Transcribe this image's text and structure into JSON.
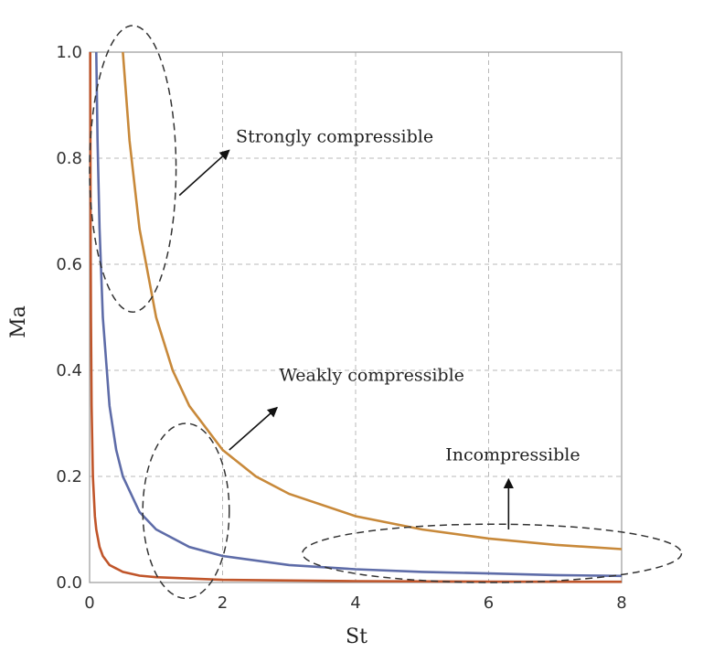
{
  "chart_data": {
    "type": "line",
    "xlabel": "St",
    "ylabel": "Ma",
    "xlim": [
      0,
      8
    ],
    "ylim": [
      0,
      1
    ],
    "xticks": [
      "0",
      "2",
      "4",
      "6",
      "8"
    ],
    "yticks": [
      "0.0",
      "0.2",
      "0.4",
      "0.6",
      "0.8",
      "1.0"
    ],
    "grid": true,
    "series": [
      {
        "color": "#c8893a",
        "x": [
          0.5,
          0.6,
          0.75,
          1,
          1.25,
          1.5,
          2,
          2.5,
          3,
          4,
          5,
          6,
          7,
          8
        ],
        "y": [
          1.0,
          0.833,
          0.667,
          0.5,
          0.4,
          0.333,
          0.25,
          0.2,
          0.167,
          0.125,
          0.1,
          0.083,
          0.071,
          0.063
        ]
      },
      {
        "color": "#5e6ca8",
        "x": [
          0.1,
          0.12,
          0.15,
          0.2,
          0.3,
          0.4,
          0.5,
          0.75,
          1,
          1.5,
          2,
          3,
          4,
          5,
          6,
          7,
          8
        ],
        "y": [
          1.0,
          0.833,
          0.667,
          0.5,
          0.333,
          0.25,
          0.2,
          0.133,
          0.1,
          0.067,
          0.05,
          0.033,
          0.025,
          0.02,
          0.017,
          0.014,
          0.0125
        ]
      },
      {
        "color": "#c0552a",
        "x": [
          0.01,
          0.012,
          0.015,
          0.02,
          0.03,
          0.05,
          0.08,
          0.1,
          0.15,
          0.2,
          0.3,
          0.5,
          0.75,
          1,
          2,
          4,
          6,
          8
        ],
        "y": [
          1.0,
          0.833,
          0.667,
          0.5,
          0.333,
          0.2,
          0.125,
          0.1,
          0.067,
          0.05,
          0.033,
          0.02,
          0.013,
          0.01,
          0.005,
          0.0025,
          0.0017,
          0.0013
        ]
      }
    ],
    "annotations": [
      {
        "text": "Strongly compressible",
        "x": 2.2,
        "y": 0.83
      },
      {
        "text": "Weakly compressible",
        "x": 2.85,
        "y": 0.38
      },
      {
        "text": "Incompressible",
        "x": 5.35,
        "y": 0.23
      }
    ],
    "regions": [
      {
        "name": "strongly",
        "cx": 0.65,
        "cy": 0.78,
        "rx": 0.65,
        "ry": 0.27
      },
      {
        "name": "weakly",
        "cx": 1.45,
        "cy": 0.135,
        "rx": 0.65,
        "ry": 0.165
      },
      {
        "name": "incompressible",
        "cx": 6.05,
        "cy": 0.055,
        "rx": 2.85,
        "ry": 0.055
      }
    ],
    "arrows": [
      {
        "from": [
          1.35,
          0.73
        ],
        "to": [
          2.1,
          0.815
        ]
      },
      {
        "from": [
          2.1,
          0.25
        ],
        "to": [
          2.82,
          0.33
        ]
      },
      {
        "from": [
          6.3,
          0.1
        ],
        "to": [
          6.3,
          0.195
        ]
      }
    ]
  }
}
